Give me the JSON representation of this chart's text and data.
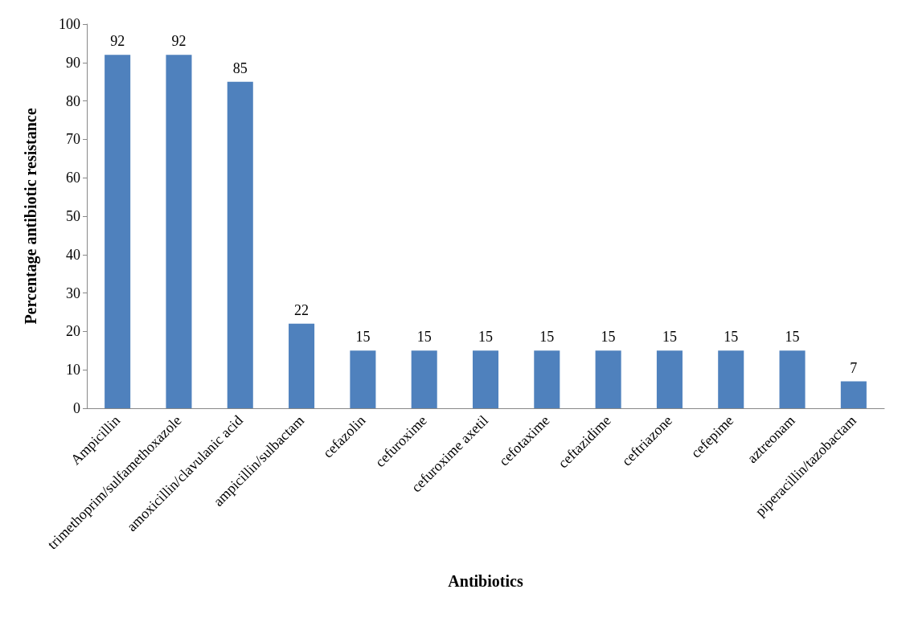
{
  "chart_data": {
    "type": "bar",
    "xlabel": "Antibiotics",
    "ylabel": "Percentage antibiotic resistance",
    "categories": [
      "Ampicillin",
      "trimethoprim/sulfamethoxazole",
      "amoxicillin/clavulanic acid",
      "ampicillin/sulbactam",
      "cefazolin",
      "cefuroxime",
      "cefuroxime axetil",
      "cefotaxime",
      "ceftazidime",
      "ceftriazone",
      "cefepime",
      "aztreonam",
      "piperacillin/tazobactam"
    ],
    "values": [
      92,
      92,
      85,
      22,
      15,
      15,
      15,
      15,
      15,
      15,
      15,
      15,
      7
    ],
    "color": "#4f81bd",
    "ylim": [
      0,
      100
    ],
    "yticks": [
      0,
      10,
      20,
      30,
      40,
      50,
      60,
      70,
      80,
      90,
      100
    ],
    "grid": false,
    "data_labels": true
  }
}
